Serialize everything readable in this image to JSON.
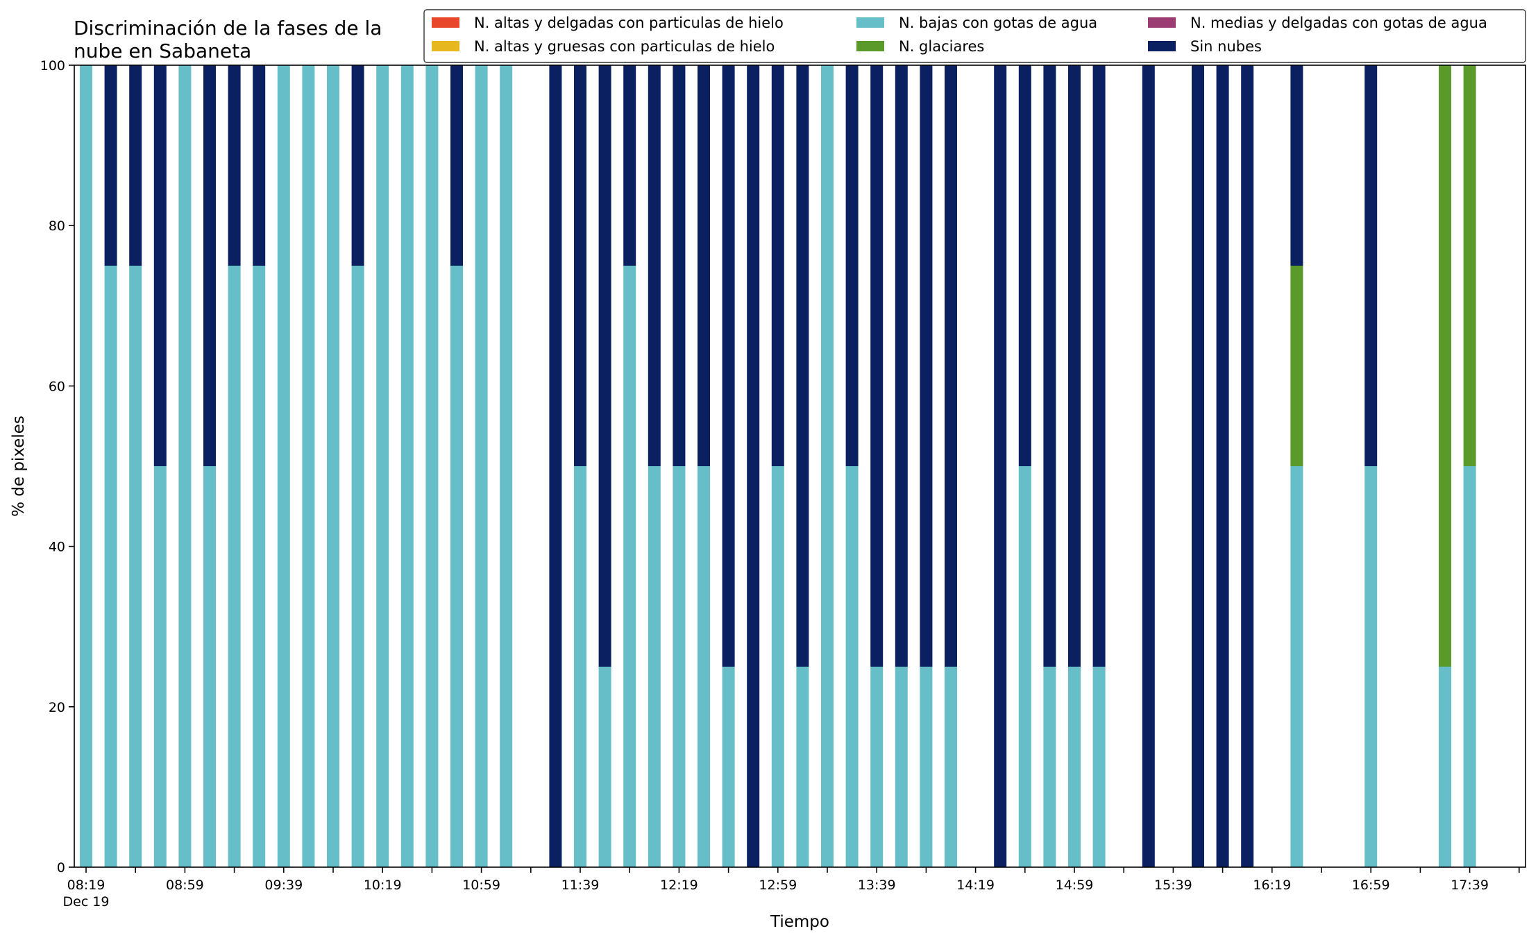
{
  "chart_data": {
    "type": "bar",
    "stacked": true,
    "title_lines": [
      "Discriminación de la fases de la",
      "nube en Sabaneta"
    ],
    "xlabel": "Tiempo",
    "ylabel": "% de pixeles",
    "ylim": [
      0,
      100
    ],
    "yticks": [
      0,
      20,
      40,
      60,
      80,
      100
    ],
    "x_start": "08:19",
    "x_step_minutes": 10,
    "slots": 59,
    "xtick_labels": [
      {
        "slot": 0,
        "label": "08:19",
        "sublabel": "Dec 19"
      },
      {
        "slot": 4,
        "label": "08:59"
      },
      {
        "slot": 8,
        "label": "09:39"
      },
      {
        "slot": 12,
        "label": "10:19"
      },
      {
        "slot": 16,
        "label": "10:59"
      },
      {
        "slot": 20,
        "label": "11:39"
      },
      {
        "slot": 24,
        "label": "12:19"
      },
      {
        "slot": 28,
        "label": "12:59"
      },
      {
        "slot": 32,
        "label": "13:39"
      },
      {
        "slot": 36,
        "label": "14:19"
      },
      {
        "slot": 40,
        "label": "14:59"
      },
      {
        "slot": 44,
        "label": "15:39"
      },
      {
        "slot": 48,
        "label": "16:19"
      },
      {
        "slot": 52,
        "label": "16:59"
      },
      {
        "slot": 56,
        "label": "17:39"
      }
    ],
    "grid": false,
    "legend_position": "top-right",
    "series": [
      {
        "name": "N. altas y delgadas con particulas de hielo",
        "color": "#e8472b",
        "values": []
      },
      {
        "name": "N. altas y gruesas con particulas de hielo",
        "color": "#e6b71e",
        "values": []
      },
      {
        "name": "N. bajas con gotas de agua",
        "color": "#66bec8",
        "values": []
      },
      {
        "name": "N. glaciares",
        "color": "#5a9a2b",
        "values": []
      },
      {
        "name": "N. medias y delgadas con gotas de agua",
        "color": "#9b3d73",
        "values": []
      },
      {
        "name": "Sin nubes",
        "color": "#0b2060",
        "values": []
      }
    ],
    "bars": [
      {
        "slot": 0,
        "bajas": 100,
        "glaciares": 0,
        "sin_nubes": 0
      },
      {
        "slot": 1,
        "bajas": 75,
        "glaciares": 0,
        "sin_nubes": 25
      },
      {
        "slot": 2,
        "bajas": 75,
        "glaciares": 0,
        "sin_nubes": 25
      },
      {
        "slot": 3,
        "bajas": 50,
        "glaciares": 0,
        "sin_nubes": 50
      },
      {
        "slot": 4,
        "bajas": 100,
        "glaciares": 0,
        "sin_nubes": 0
      },
      {
        "slot": 5,
        "bajas": 50,
        "glaciares": 0,
        "sin_nubes": 50
      },
      {
        "slot": 6,
        "bajas": 75,
        "glaciares": 0,
        "sin_nubes": 25
      },
      {
        "slot": 7,
        "bajas": 75,
        "glaciares": 0,
        "sin_nubes": 25
      },
      {
        "slot": 8,
        "bajas": 100,
        "glaciares": 0,
        "sin_nubes": 0
      },
      {
        "slot": 9,
        "bajas": 100,
        "glaciares": 0,
        "sin_nubes": 0
      },
      {
        "slot": 10,
        "bajas": 100,
        "glaciares": 0,
        "sin_nubes": 0
      },
      {
        "slot": 11,
        "bajas": 75,
        "glaciares": 0,
        "sin_nubes": 25
      },
      {
        "slot": 12,
        "bajas": 100,
        "glaciares": 0,
        "sin_nubes": 0
      },
      {
        "slot": 13,
        "bajas": 100,
        "glaciares": 0,
        "sin_nubes": 0
      },
      {
        "slot": 14,
        "bajas": 100,
        "glaciares": 0,
        "sin_nubes": 0
      },
      {
        "slot": 15,
        "bajas": 75,
        "glaciares": 0,
        "sin_nubes": 25
      },
      {
        "slot": 16,
        "bajas": 100,
        "glaciares": 0,
        "sin_nubes": 0
      },
      {
        "slot": 17,
        "bajas": 100,
        "glaciares": 0,
        "sin_nubes": 0
      },
      {
        "slot": 19,
        "bajas": 0,
        "glaciares": 0,
        "sin_nubes": 100
      },
      {
        "slot": 20,
        "bajas": 50,
        "glaciares": 0,
        "sin_nubes": 50
      },
      {
        "slot": 21,
        "bajas": 25,
        "glaciares": 0,
        "sin_nubes": 75
      },
      {
        "slot": 22,
        "bajas": 75,
        "glaciares": 0,
        "sin_nubes": 25
      },
      {
        "slot": 23,
        "bajas": 50,
        "glaciares": 0,
        "sin_nubes": 50
      },
      {
        "slot": 24,
        "bajas": 50,
        "glaciares": 0,
        "sin_nubes": 50
      },
      {
        "slot": 25,
        "bajas": 50,
        "glaciares": 0,
        "sin_nubes": 50
      },
      {
        "slot": 26,
        "bajas": 25,
        "glaciares": 0,
        "sin_nubes": 75
      },
      {
        "slot": 27,
        "bajas": 0,
        "glaciares": 0,
        "sin_nubes": 100
      },
      {
        "slot": 28,
        "bajas": 50,
        "glaciares": 0,
        "sin_nubes": 50
      },
      {
        "slot": 29,
        "bajas": 25,
        "glaciares": 0,
        "sin_nubes": 75
      },
      {
        "slot": 30,
        "bajas": 100,
        "glaciares": 0,
        "sin_nubes": 0
      },
      {
        "slot": 31,
        "bajas": 50,
        "glaciares": 0,
        "sin_nubes": 50
      },
      {
        "slot": 32,
        "bajas": 25,
        "glaciares": 0,
        "sin_nubes": 75
      },
      {
        "slot": 33,
        "bajas": 25,
        "glaciares": 0,
        "sin_nubes": 75
      },
      {
        "slot": 34,
        "bajas": 25,
        "glaciares": 0,
        "sin_nubes": 75
      },
      {
        "slot": 35,
        "bajas": 25,
        "glaciares": 0,
        "sin_nubes": 75
      },
      {
        "slot": 37,
        "bajas": 0,
        "glaciares": 0,
        "sin_nubes": 100
      },
      {
        "slot": 38,
        "bajas": 50,
        "glaciares": 0,
        "sin_nubes": 50
      },
      {
        "slot": 39,
        "bajas": 25,
        "glaciares": 0,
        "sin_nubes": 75
      },
      {
        "slot": 40,
        "bajas": 25,
        "glaciares": 0,
        "sin_nubes": 75
      },
      {
        "slot": 41,
        "bajas": 25,
        "glaciares": 0,
        "sin_nubes": 75
      },
      {
        "slot": 43,
        "bajas": 0,
        "glaciares": 0,
        "sin_nubes": 100
      },
      {
        "slot": 45,
        "bajas": 0,
        "glaciares": 0,
        "sin_nubes": 100
      },
      {
        "slot": 46,
        "bajas": 0,
        "glaciares": 0,
        "sin_nubes": 100
      },
      {
        "slot": 47,
        "bajas": 0,
        "glaciares": 0,
        "sin_nubes": 100
      },
      {
        "slot": 49,
        "bajas": 50,
        "glaciares": 25,
        "sin_nubes": 25
      },
      {
        "slot": 52,
        "bajas": 50,
        "glaciares": 0,
        "sin_nubes": 50
      },
      {
        "slot": 55,
        "bajas": 25,
        "glaciares": 75,
        "sin_nubes": 0
      },
      {
        "slot": 56,
        "bajas": 50,
        "glaciares": 50,
        "sin_nubes": 0
      }
    ]
  }
}
